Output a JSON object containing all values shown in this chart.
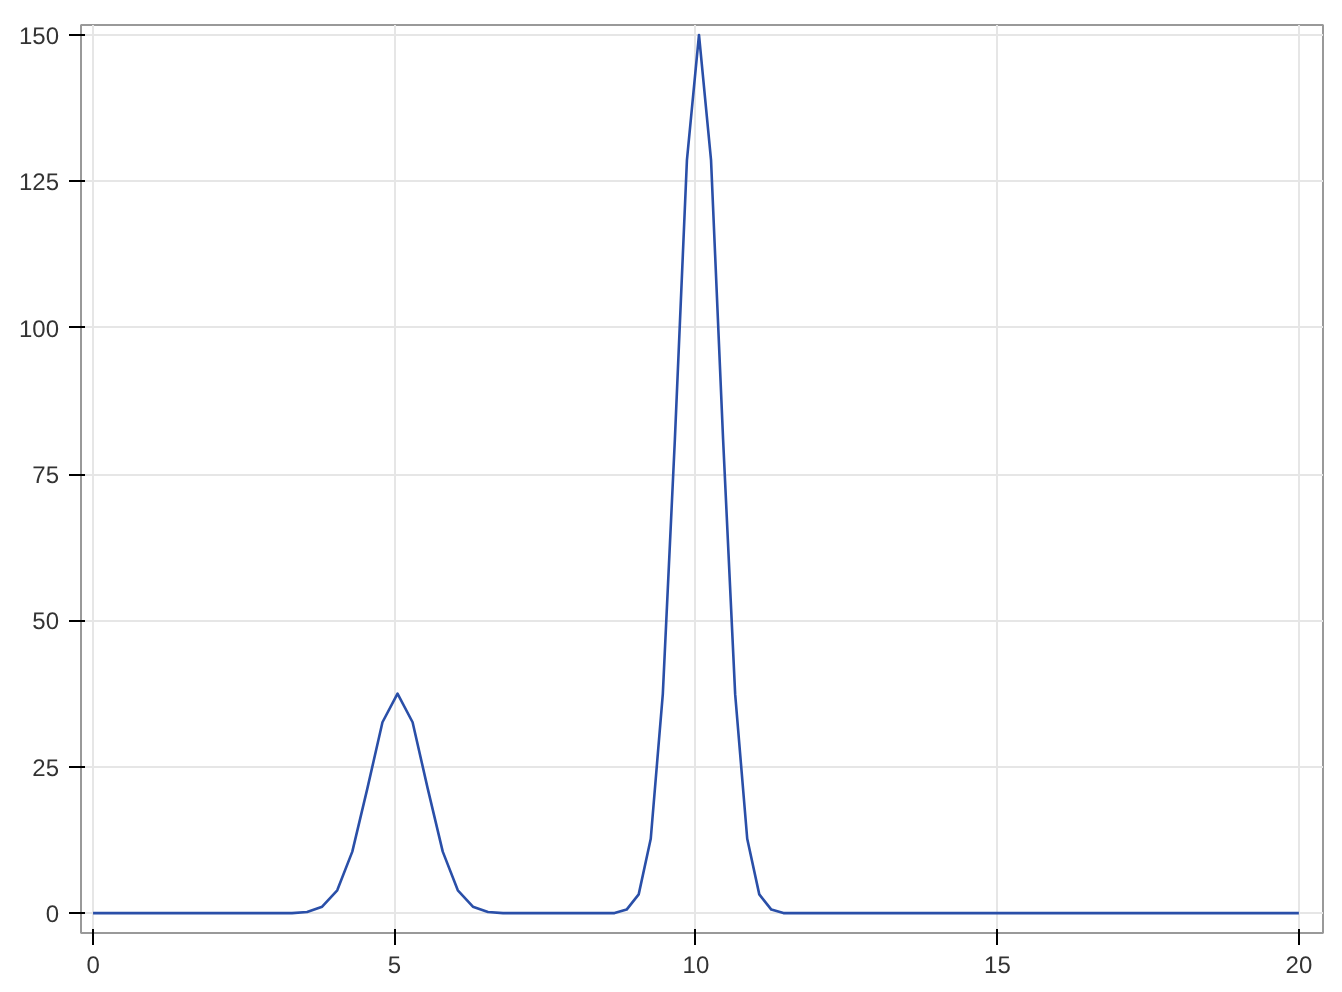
{
  "chart_data": {
    "type": "line",
    "x": [
      0,
      3,
      3.3,
      3.55,
      3.8,
      4.05,
      4.3,
      4.55,
      4.8,
      5.05,
      5.3,
      5.55,
      5.8,
      6.05,
      6.3,
      6.55,
      6.8,
      7,
      8.5,
      8.65,
      8.85,
      9.05,
      9.25,
      9.45,
      9.65,
      9.85,
      10.05,
      10.25,
      10.45,
      10.65,
      10.85,
      11.05,
      11.25,
      11.45,
      11.6,
      20
    ],
    "series": [
      {
        "color": "#2a4fa8",
        "values": [
          0,
          0,
          0,
          0.2,
          1.1,
          3.9,
          10.5,
          21.3,
          32.6,
          37.5,
          32.6,
          21.3,
          10.5,
          3.9,
          1.1,
          0.2,
          0,
          0,
          0,
          0,
          0.6,
          3.2,
          12.7,
          37.4,
          80.9,
          128.6,
          150,
          128.6,
          80.9,
          37.4,
          12.7,
          3.2,
          0.6,
          0,
          0,
          0
        ]
      }
    ],
    "xlim": [
      -0.2,
      20.4
    ],
    "ylim": [
      -3.4,
      151.7
    ],
    "xticks": [
      0,
      5,
      10,
      15,
      20
    ],
    "yticks": [
      0,
      25,
      50,
      75,
      100,
      125,
      150
    ],
    "grid": true,
    "marker": "none",
    "line_style": "solid"
  }
}
